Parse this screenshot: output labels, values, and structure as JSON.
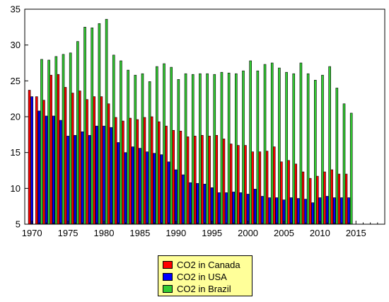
{
  "chart_data": {
    "type": "bar",
    "title": "",
    "xlabel": "",
    "ylabel": "",
    "xlim": [
      1969,
      2019
    ],
    "ylim": [
      5,
      35
    ],
    "x_ticks": [
      1970,
      1975,
      1980,
      1985,
      1990,
      1995,
      2000,
      2005,
      2010,
      2015
    ],
    "y_ticks": [
      5,
      10,
      15,
      20,
      25,
      30,
      35
    ],
    "grid": false,
    "legend_position": "bottom-center",
    "years": [
      1970,
      1971,
      1972,
      1973,
      1974,
      1975,
      1976,
      1977,
      1978,
      1979,
      1980,
      1981,
      1982,
      1983,
      1984,
      1985,
      1986,
      1987,
      1988,
      1989,
      1990,
      1991,
      1992,
      1993,
      1994,
      1995,
      1996,
      1997,
      1998,
      1999,
      2000,
      2001,
      2002,
      2003,
      2004,
      2005,
      2006,
      2007,
      2008,
      2009,
      2010,
      2011,
      2012,
      2013,
      2014
    ],
    "series": [
      {
        "name": "CO2 in Canada",
        "color": "#ff0000",
        "values": [
          23.7,
          22.8,
          22.3,
          25.8,
          25.9,
          24.1,
          23.3,
          23.6,
          22.4,
          22.8,
          22.8,
          21.8,
          19.9,
          19.4,
          19.8,
          19.6,
          19.9,
          20.0,
          19.3,
          18.7,
          18.1,
          18.0,
          17.2,
          17.3,
          17.4,
          17.3,
          17.4,
          16.9,
          16.2,
          16.0,
          16.0,
          15.1,
          15.1,
          15.2,
          15.8,
          13.7,
          13.9,
          13.4,
          12.3,
          11.4,
          11.7,
          12.3,
          12.6,
          12.0,
          12.0
        ]
      },
      {
        "name": "CO2 in USA",
        "color": "#0000ff",
        "values": [
          22.8,
          20.8,
          20.1,
          20.1,
          19.5,
          17.3,
          17.4,
          17.9,
          17.4,
          18.7,
          18.7,
          18.5,
          16.4,
          15.0,
          15.8,
          15.6,
          15.1,
          14.9,
          14.7,
          13.7,
          12.6,
          11.9,
          10.8,
          10.7,
          10.6,
          10.1,
          9.4,
          9.4,
          9.5,
          9.4,
          9.2,
          9.9,
          8.9,
          8.7,
          8.7,
          8.4,
          8.7,
          8.6,
          8.5,
          8.0,
          8.7,
          8.9,
          8.7,
          8.7,
          8.7
        ]
      },
      {
        "name": "CO2 in Brazil",
        "color": "#33cc33",
        "values": [
          null,
          28.0,
          27.9,
          28.4,
          28.7,
          28.9,
          30.5,
          32.5,
          32.4,
          33.0,
          33.6,
          28.6,
          27.8,
          26.5,
          25.8,
          26.0,
          24.9,
          27.0,
          27.4,
          26.9,
          25.2,
          26.0,
          25.9,
          26.0,
          26.0,
          25.9,
          26.2,
          26.1,
          26.0,
          26.4,
          27.8,
          26.4,
          27.3,
          27.5,
          26.8,
          26.2,
          26.0,
          27.5,
          26.0,
          25.1,
          25.8,
          27.0,
          24.0,
          21.8,
          20.5
        ]
      }
    ]
  }
}
